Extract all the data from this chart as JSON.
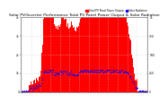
{
  "title": "Solar PV/Inverter Performance Total PV Panel Power Output & Solar Radiation",
  "title_fontsize": 3.2,
  "bg_color": "#ffffff",
  "plot_bg_color": "#ffffff",
  "bar_color": "#ff0000",
  "line_color": "#0000ff",
  "grid_color": "#cccccc",
  "legend_pv": "Total PV Panel Power Output",
  "legend_sr": "Solar Radiation",
  "num_points": 200,
  "ylim": [
    0,
    1.0
  ],
  "xlim": [
    0,
    200
  ],
  "yticks_left": [
    0,
    0.25,
    0.5,
    0.75,
    1.0
  ],
  "ytick_labels_left": [
    "0",
    "1k",
    "2k",
    "3k",
    "4k"
  ],
  "ytick_labels_right": [
    "0",
    "250",
    "500",
    "750",
    "1k"
  ]
}
